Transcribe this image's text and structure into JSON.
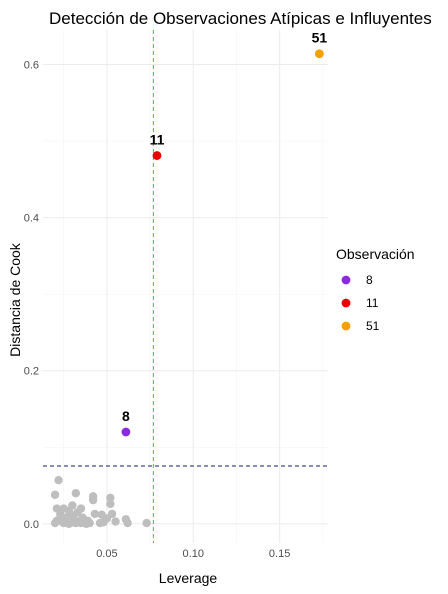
{
  "chart_data": {
    "type": "scatter",
    "title": "Detección de Observaciones Atípicas e Influyentes",
    "xlabel": "Leverage",
    "ylabel": "Distancia de Cook",
    "xlim": [
      0.013,
      0.178
    ],
    "ylim": [
      -0.025,
      0.645
    ],
    "x_ticks": [
      0.05,
      0.1,
      0.15
    ],
    "x_tick_labels": [
      "0.05",
      "0.10",
      "0.15"
    ],
    "y_ticks": [
      0.0,
      0.2,
      0.4,
      0.6
    ],
    "y_tick_labels": [
      "0.0",
      "0.2",
      "0.4",
      "0.6"
    ],
    "grid": true,
    "reference_lines": [
      {
        "orientation": "vertical",
        "value": 0.0769,
        "color": "#33cc33",
        "style": "dashed"
      },
      {
        "orientation": "horizontal",
        "value": 0.0755,
        "color": "#1a1a7a",
        "style": "dashed"
      }
    ],
    "legend": {
      "title": "Observación",
      "position": "right",
      "entries": [
        {
          "label": "8",
          "color": "#8a2be2"
        },
        {
          "label": "11",
          "color": "#ee0000"
        },
        {
          "label": "51",
          "color": "#f5a000"
        }
      ]
    },
    "highlighted_points": [
      {
        "label": "8",
        "x": 0.061,
        "y": 0.12,
        "color": "#8a2be2"
      },
      {
        "label": "11",
        "x": 0.079,
        "y": 0.481,
        "color": "#ee0000"
      },
      {
        "label": "51",
        "x": 0.173,
        "y": 0.614,
        "color": "#f5a000"
      }
    ],
    "other_points_color": "#bebebe",
    "other_points": [
      [
        0.02,
        0.038
      ],
      [
        0.022,
        0.057
      ],
      [
        0.021,
        0.02
      ],
      [
        0.021,
        0.004
      ],
      [
        0.02,
        0.001
      ],
      [
        0.023,
        0.012
      ],
      [
        0.024,
        0.003
      ],
      [
        0.025,
        0.02
      ],
      [
        0.025,
        0.001
      ],
      [
        0.026,
        0.008
      ],
      [
        0.027,
        0.003
      ],
      [
        0.028,
        0.017
      ],
      [
        0.028,
        0.0
      ],
      [
        0.029,
        0.012
      ],
      [
        0.03,
        0.002
      ],
      [
        0.03,
        0.024
      ],
      [
        0.031,
        0.006
      ],
      [
        0.032,
        0.04
      ],
      [
        0.032,
        0.001
      ],
      [
        0.033,
        0.015
      ],
      [
        0.034,
        0.003
      ],
      [
        0.035,
        0.02
      ],
      [
        0.035,
        0.001
      ],
      [
        0.036,
        0.008
      ],
      [
        0.037,
        0.002
      ],
      [
        0.038,
        0.0
      ],
      [
        0.039,
        0.004
      ],
      [
        0.04,
        0.001
      ],
      [
        0.042,
        0.036
      ],
      [
        0.042,
        0.031
      ],
      [
        0.043,
        0.013
      ],
      [
        0.046,
        0.001
      ],
      [
        0.047,
        0.012
      ],
      [
        0.048,
        0.002
      ],
      [
        0.05,
        0.007
      ],
      [
        0.052,
        0.034
      ],
      [
        0.052,
        0.026
      ],
      [
        0.053,
        0.013
      ],
      [
        0.055,
        0.003
      ],
      [
        0.061,
        0.006
      ],
      [
        0.062,
        0.001
      ],
      [
        0.073,
        0.001
      ]
    ]
  }
}
